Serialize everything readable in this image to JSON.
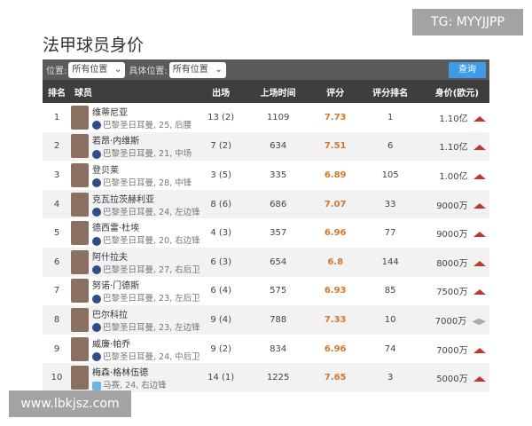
{
  "watermarks": {
    "top": "TG: MYYJJPP",
    "bottom": "www.lbkjsz.com"
  },
  "title": "法甲球员身价",
  "filters": {
    "position_label": "位置:",
    "position_value": "所有位置",
    "detail_label": "具体位置:",
    "detail_value": "所有位置",
    "query": "查询"
  },
  "headers": [
    "排名",
    "球员",
    "出场",
    "上场时间",
    "评分",
    "评分排名",
    "身价(欧元)"
  ],
  "rows": [
    {
      "rank": "1",
      "name": "维蒂尼亚",
      "info": "巴黎圣日耳曼, 25, 后腰",
      "apps": "13 (2)",
      "minutes": "1109",
      "rating": "7.73",
      "rating_rank": "1",
      "value": "1.10亿",
      "trend": "up"
    },
    {
      "rank": "2",
      "name": "若昂·内维斯",
      "info": "巴黎圣日耳曼, 21, 中场",
      "apps": "7 (2)",
      "minutes": "634",
      "rating": "7.51",
      "rating_rank": "6",
      "value": "1.10亿",
      "trend": "up"
    },
    {
      "rank": "3",
      "name": "登贝莱",
      "info": "巴黎圣日耳曼, 28, 中锋",
      "apps": "3 (5)",
      "minutes": "335",
      "rating": "6.89",
      "rating_rank": "105",
      "value": "1.00亿",
      "trend": "up"
    },
    {
      "rank": "4",
      "name": "克瓦拉茨赫利亚",
      "info": "巴黎圣日耳曼, 24, 左边锋",
      "apps": "8 (6)",
      "minutes": "686",
      "rating": "7.07",
      "rating_rank": "33",
      "value": "9000万",
      "trend": "up"
    },
    {
      "rank": "5",
      "name": "德西雷·杜埃",
      "info": "巴黎圣日耳曼, 20, 右边锋",
      "apps": "4 (3)",
      "minutes": "357",
      "rating": "6.96",
      "rating_rank": "77",
      "value": "9000万",
      "trend": "up"
    },
    {
      "rank": "6",
      "name": "阿什拉夫",
      "info": "巴黎圣日耳曼, 27, 右后卫",
      "apps": "6 (3)",
      "minutes": "654",
      "rating": "6.8",
      "rating_rank": "144",
      "value": "8000万",
      "trend": "up"
    },
    {
      "rank": "7",
      "name": "努诺·门德斯",
      "info": "巴黎圣日耳曼, 23, 左后卫",
      "apps": "6 (4)",
      "minutes": "575",
      "rating": "6.93",
      "rating_rank": "85",
      "value": "7500万",
      "trend": "up"
    },
    {
      "rank": "8",
      "name": "巴尔科拉",
      "info": "巴黎圣日耳曼, 23, 左边锋",
      "apps": "9 (4)",
      "minutes": "788",
      "rating": "7.33",
      "rating_rank": "10",
      "value": "7000万",
      "trend": "same"
    },
    {
      "rank": "9",
      "name": "威廉·帕乔",
      "info": "巴黎圣日耳曼, 24, 中后卫",
      "apps": "9 (2)",
      "minutes": "834",
      "rating": "6.96",
      "rating_rank": "74",
      "value": "7000万",
      "trend": "up"
    },
    {
      "rank": "10",
      "name": "梅森·格林伍德",
      "info": "马赛, 24, 右边锋",
      "apps": "14 (1)",
      "minutes": "1225",
      "rating": "7.65",
      "rating_rank": "3",
      "value": "5000万",
      "trend": "up"
    }
  ],
  "colors": {
    "rating": "#d5772a",
    "up": "#c0392b",
    "header": "#3e3e3e",
    "query": "#3d9be9"
  }
}
